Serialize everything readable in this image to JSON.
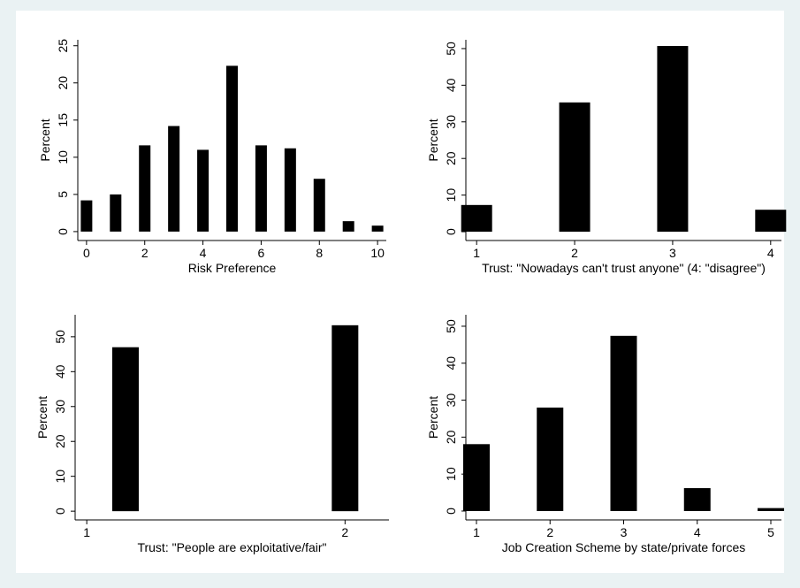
{
  "chart_data": [
    {
      "type": "bar",
      "xlabel": "Risk Preference",
      "ylabel": "Percent",
      "color": "#000000",
      "x": [
        0,
        1,
        2,
        3,
        4,
        5,
        6,
        7,
        8,
        9,
        10
      ],
      "values": [
        4.2,
        5.0,
        11.6,
        14.2,
        11.0,
        22.3,
        11.6,
        11.2,
        7.1,
        1.4,
        0.8
      ],
      "xlim": [
        -0.3,
        10.3
      ],
      "ylim": [
        -1.2,
        25.8
      ],
      "xticks": [
        0,
        2,
        4,
        6,
        8,
        10
      ],
      "yticks": [
        0,
        5,
        10,
        15,
        20,
        25
      ]
    },
    {
      "type": "bar",
      "xlabel": "Trust: \"Nowadays can't trust anyone\" (4: \"disagree\")",
      "ylabel": "Percent",
      "color": "#000000",
      "x": [
        1,
        2,
        3,
        4
      ],
      "values": [
        7.3,
        35.3,
        50.7,
        6.0
      ],
      "xlim": [
        0.89,
        4.11
      ],
      "ylim": [
        -2.4,
        52.4
      ],
      "xticks": [
        1,
        2,
        3,
        4
      ],
      "yticks": [
        0,
        10,
        20,
        30,
        40,
        50
      ]
    },
    {
      "type": "bar",
      "xlabel": "Trust: \"People are exploitative/fair\"",
      "ylabel": "Percent",
      "color": "#000000",
      "x": [
        1.15,
        2
      ],
      "values": [
        47.0,
        53.3
      ],
      "xlim": [
        0.955,
        2.17
      ],
      "ylim": [
        -2.5,
        56.3
      ],
      "xticks": [
        1,
        2
      ],
      "yticks": [
        0,
        10,
        20,
        30,
        40,
        50
      ]
    },
    {
      "type": "bar",
      "xlabel": "Job Creation Scheme by state/private forces",
      "ylabel": "Percent",
      "color": "#000000",
      "x": [
        1,
        2,
        3,
        4,
        5
      ],
      "values": [
        18.1,
        28.0,
        47.4,
        6.2,
        0.8
      ],
      "xlim": [
        0.856,
        5.144
      ],
      "ylim": [
        -2.4,
        53.1
      ],
      "xticks": [
        1,
        2,
        3,
        4,
        5
      ],
      "yticks": [
        0,
        10,
        20,
        30,
        40,
        50
      ]
    }
  ]
}
